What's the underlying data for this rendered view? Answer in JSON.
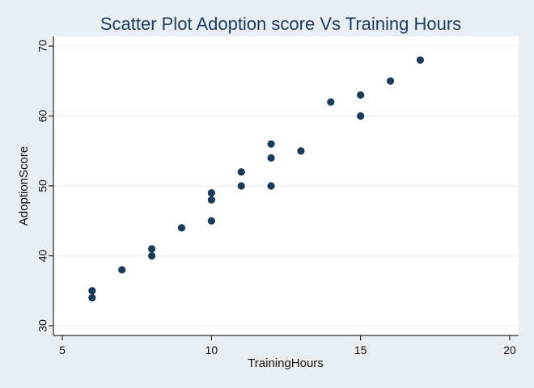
{
  "chart_data": {
    "type": "scatter",
    "title": "Scatter Plot Adoption score Vs Training Hours",
    "xlabel": "TrainingHours",
    "ylabel": "AdoptionScore",
    "xlim": [
      5,
      20
    ],
    "ylim": [
      30,
      70
    ],
    "xticks": [
      "5",
      "10",
      "15",
      "20"
    ],
    "yticks": [
      "30",
      "40",
      "50",
      "60",
      "70"
    ],
    "grid": true,
    "points": [
      {
        "x": 6,
        "y": 35
      },
      {
        "x": 6,
        "y": 34
      },
      {
        "x": 7,
        "y": 38
      },
      {
        "x": 8,
        "y": 41
      },
      {
        "x": 8,
        "y": 40
      },
      {
        "x": 9,
        "y": 44
      },
      {
        "x": 10,
        "y": 49
      },
      {
        "x": 10,
        "y": 48
      },
      {
        "x": 10,
        "y": 45
      },
      {
        "x": 11,
        "y": 52
      },
      {
        "x": 11,
        "y": 50
      },
      {
        "x": 12,
        "y": 56
      },
      {
        "x": 12,
        "y": 54
      },
      {
        "x": 12,
        "y": 50
      },
      {
        "x": 13,
        "y": 55
      },
      {
        "x": 14,
        "y": 62
      },
      {
        "x": 15,
        "y": 63
      },
      {
        "x": 15,
        "y": 60
      },
      {
        "x": 16,
        "y": 65
      },
      {
        "x": 17,
        "y": 68
      }
    ],
    "colors": {
      "background": "#e8eef2",
      "plot_background": "#ffffff",
      "marker": "#1c3a57",
      "title": "#1e3a5c",
      "grid": "#e5ecf1",
      "axis": "#000000"
    }
  }
}
